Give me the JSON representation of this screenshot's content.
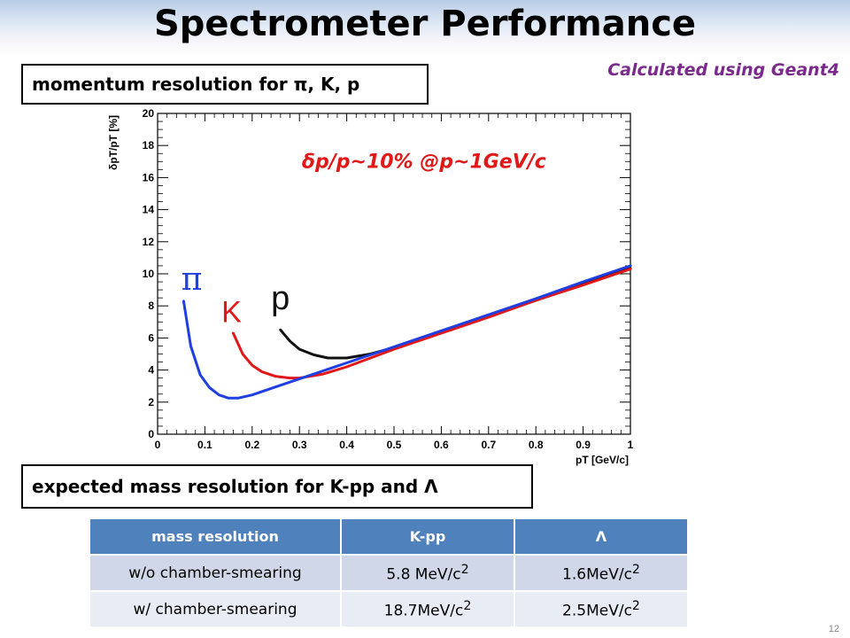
{
  "header": {
    "title": "Spectrometer Performance",
    "subtitle": "Calculated using Geant4"
  },
  "boxes": {
    "momentum": "momentum resolution for π, K, p",
    "mass": "expected mass resolution for K-pp and Λ"
  },
  "chart_data": {
    "type": "line",
    "xlabel": "pT [GeV/c]",
    "ylabel": "δpT/pT [%]",
    "xlim": [
      0,
      1
    ],
    "ylim": [
      0,
      20
    ],
    "xticks": [
      "0",
      "0.1",
      "0.2",
      "0.3",
      "0.4",
      "0.5",
      "0.6",
      "0.7",
      "0.8",
      "0.9",
      "1"
    ],
    "yticks": [
      "0",
      "2",
      "4",
      "6",
      "8",
      "10",
      "12",
      "14",
      "16",
      "18",
      "20"
    ],
    "annotation": "δp/p~10% @p~1GeV/c",
    "colors": {
      "pi": "#1f3fe0",
      "k": "#e01818",
      "p": "#111111"
    },
    "series": [
      {
        "name": "π",
        "x": [
          0.055,
          0.07,
          0.09,
          0.11,
          0.13,
          0.15,
          0.17,
          0.2,
          0.25,
          0.3,
          0.35,
          0.4,
          0.5,
          0.6,
          0.7,
          0.8,
          0.9,
          1.0
        ],
        "y": [
          8.3,
          5.5,
          3.7,
          2.9,
          2.45,
          2.25,
          2.25,
          2.45,
          2.95,
          3.45,
          3.95,
          4.45,
          5.45,
          6.45,
          7.45,
          8.45,
          9.5,
          10.5
        ]
      },
      {
        "name": "K",
        "x": [
          0.16,
          0.18,
          0.2,
          0.22,
          0.25,
          0.28,
          0.3,
          0.35,
          0.4,
          0.5,
          0.6,
          0.7,
          0.8,
          0.9,
          1.0
        ],
        "y": [
          6.3,
          5.0,
          4.3,
          3.9,
          3.6,
          3.5,
          3.5,
          3.75,
          4.2,
          5.3,
          6.3,
          7.3,
          8.35,
          9.3,
          10.3
        ]
      },
      {
        "name": "p",
        "x": [
          0.26,
          0.28,
          0.3,
          0.33,
          0.36,
          0.4,
          0.45,
          0.5,
          0.6,
          0.7,
          0.8,
          0.9,
          1.0
        ],
        "y": [
          6.5,
          5.8,
          5.3,
          4.95,
          4.75,
          4.75,
          5.0,
          5.4,
          6.35,
          7.35,
          8.35,
          9.35,
          10.35
        ]
      }
    ]
  },
  "table": {
    "headers": [
      "mass resolution",
      "K-pp",
      "Λ"
    ],
    "rows": [
      [
        "w/o chamber-smearing",
        "5.8 MeV/c",
        "2",
        "1.6MeV/c",
        "2"
      ],
      [
        "w/ chamber-smearing",
        "18.7MeV/c",
        "2",
        "2.5MeV/c",
        "2"
      ]
    ]
  },
  "footer": {
    "page": "12"
  }
}
